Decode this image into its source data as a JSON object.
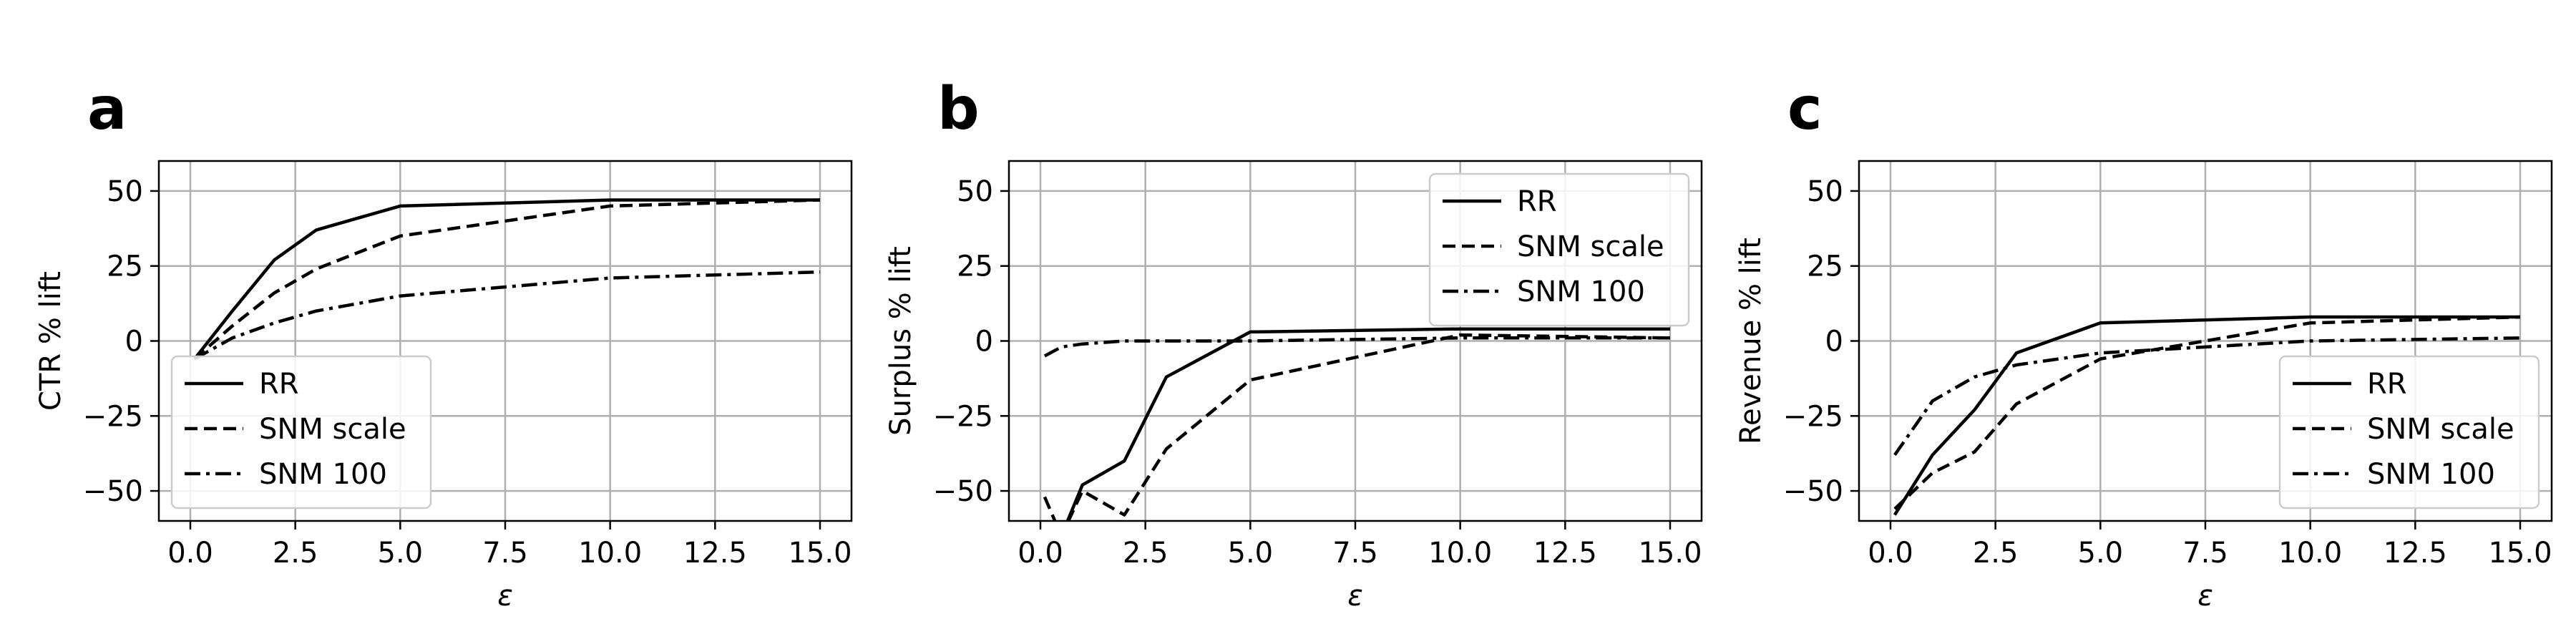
{
  "chart_data": [
    {
      "type": "line",
      "panel_label": "a",
      "xlabel": "ε",
      "ylabel": "CTR % lift",
      "xlim": [
        -0.75,
        15.75
      ],
      "ylim": [
        -60,
        60
      ],
      "xticks": [
        0.0,
        2.5,
        5.0,
        7.5,
        10.0,
        12.5,
        15.0
      ],
      "xtick_labels": [
        "0.0",
        "2.5",
        "5.0",
        "7.5",
        "10.0",
        "12.5",
        "15.0"
      ],
      "yticks": [
        -50,
        -25,
        0,
        25,
        50
      ],
      "ytick_labels": [
        "−50",
        "−25",
        "0",
        "25",
        "50"
      ],
      "grid": true,
      "legend_position": "lower-left",
      "series": [
        {
          "name": "RR",
          "style": "solid",
          "x": [
            0.1,
            1,
            2,
            3,
            5,
            10,
            15
          ],
          "y": [
            -6,
            10,
            27,
            37,
            45,
            47,
            47
          ]
        },
        {
          "name": "SNM scale",
          "style": "dashed",
          "x": [
            0.1,
            1,
            2,
            3,
            5,
            10,
            15
          ],
          "y": [
            -6,
            5,
            16,
            24,
            35,
            45,
            47
          ]
        },
        {
          "name": "SNM 100",
          "style": "dashdot",
          "x": [
            0.1,
            1,
            2,
            3,
            5,
            10,
            15
          ],
          "y": [
            -6,
            1,
            6,
            10,
            15,
            21,
            23
          ]
        }
      ]
    },
    {
      "type": "line",
      "panel_label": "b",
      "xlabel": "ε",
      "ylabel": "Surplus % lift",
      "xlim": [
        -0.75,
        15.75
      ],
      "ylim": [
        -60,
        60
      ],
      "xticks": [
        0.0,
        2.5,
        5.0,
        7.5,
        10.0,
        12.5,
        15.0
      ],
      "xtick_labels": [
        "0.0",
        "2.5",
        "5.0",
        "7.5",
        "10.0",
        "12.5",
        "15.0"
      ],
      "yticks": [
        -50,
        -25,
        0,
        25,
        50
      ],
      "ytick_labels": [
        "−50",
        "−25",
        "0",
        "25",
        "50"
      ],
      "grid": true,
      "legend_position": "upper-right",
      "series": [
        {
          "name": "RR",
          "style": "solid",
          "x": [
            0.5,
            1,
            2,
            3,
            5,
            10,
            15
          ],
          "y": [
            -65,
            -48,
            -40,
            -12,
            3,
            4,
            4
          ]
        },
        {
          "name": "SNM scale",
          "style": "dashed",
          "x": [
            0.1,
            0.5,
            1,
            2,
            3,
            5,
            10,
            15
          ],
          "y": [
            -52,
            -65,
            -50,
            -58,
            -36,
            -13,
            2,
            1
          ]
        },
        {
          "name": "SNM 100",
          "style": "dashdot",
          "x": [
            0.1,
            0.5,
            1,
            2,
            3,
            5,
            10,
            15
          ],
          "y": [
            -5,
            -2,
            -1,
            0,
            0,
            0,
            1,
            1
          ]
        }
      ]
    },
    {
      "type": "line",
      "panel_label": "c",
      "xlabel": "ε",
      "ylabel": "Revenue % lift",
      "xlim": [
        -0.75,
        15.75
      ],
      "ylim": [
        -60,
        60
      ],
      "xticks": [
        0.0,
        2.5,
        5.0,
        7.5,
        10.0,
        12.5,
        15.0
      ],
      "xtick_labels": [
        "0.0",
        "2.5",
        "5.0",
        "7.5",
        "10.0",
        "12.5",
        "15.0"
      ],
      "yticks": [
        -50,
        -25,
        0,
        25,
        50
      ],
      "ytick_labels": [
        "−50",
        "−25",
        "0",
        "25",
        "50"
      ],
      "grid": true,
      "legend_position": "lower-right",
      "series": [
        {
          "name": "RR",
          "style": "solid",
          "x": [
            0.1,
            1,
            2,
            3,
            5,
            10,
            15
          ],
          "y": [
            -58,
            -38,
            -23,
            -4,
            6,
            8,
            8
          ]
        },
        {
          "name": "SNM scale",
          "style": "dashed",
          "x": [
            0.1,
            1,
            2,
            3,
            5,
            10,
            15
          ],
          "y": [
            -56,
            -44,
            -37,
            -21,
            -6,
            6,
            8
          ]
        },
        {
          "name": "SNM 100",
          "style": "dashdot",
          "x": [
            0.1,
            1,
            2,
            3,
            5,
            10,
            15
          ],
          "y": [
            -38,
            -20,
            -12,
            -8,
            -4,
            0,
            1
          ]
        }
      ]
    }
  ]
}
